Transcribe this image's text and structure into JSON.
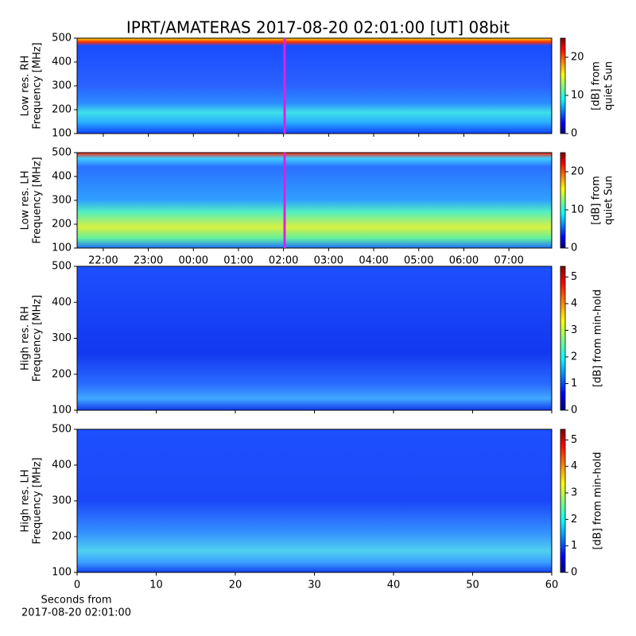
{
  "title": "IPRT/AMATERAS 2017-08-20 02:01:00 [UT]   08bit",
  "chart_data": [
    {
      "type": "heatmap",
      "ylabel": [
        "Low res. RH",
        "Frequency [MHz]"
      ],
      "xlim": [
        21.42,
        31.95
      ],
      "xticks": [
        22,
        23,
        24,
        25,
        26,
        27,
        28,
        29,
        30,
        31
      ],
      "ylim": [
        100,
        500
      ],
      "yticks": [
        100,
        200,
        300,
        400,
        500
      ],
      "colorbar": {
        "label": [
          "[dB] from",
          "quiet Sun"
        ],
        "lim": [
          0,
          25
        ],
        "ticks": [
          0,
          10,
          20
        ]
      }
    },
    {
      "type": "heatmap",
      "ylabel": [
        "Low res. LH",
        "Frequency [MHz]"
      ],
      "xlim": [
        21.42,
        31.95
      ],
      "xticks": [
        {
          "value": 22,
          "label": "22:00"
        },
        {
          "value": 23,
          "label": "23:00"
        },
        {
          "value": 24,
          "label": "00:00"
        },
        {
          "value": 25,
          "label": "01:00"
        },
        {
          "value": 26,
          "label": "02:00"
        },
        {
          "value": 27,
          "label": "03:00"
        },
        {
          "value": 28,
          "label": "04:00"
        },
        {
          "value": 29,
          "label": "05:00"
        },
        {
          "value": 30,
          "label": "06:00"
        },
        {
          "value": 31,
          "label": "07:00"
        }
      ],
      "ylim": [
        100,
        500
      ],
      "yticks": [
        100,
        200,
        300,
        400,
        500
      ],
      "colorbar": {
        "label": [
          "[dB] from",
          "quiet Sun"
        ],
        "lim": [
          0,
          25
        ],
        "ticks": [
          0,
          10,
          20
        ]
      }
    },
    {
      "type": "heatmap",
      "ylabel": [
        "High res. RH",
        "Frequency [MHz]"
      ],
      "xlim": [
        0,
        60
      ],
      "xticks": [
        0,
        10,
        20,
        30,
        40,
        50,
        60
      ],
      "ylim": [
        100,
        500
      ],
      "yticks": [
        100,
        200,
        300,
        400,
        500
      ],
      "colorbar": {
        "label": [
          "[dB] from min-hold"
        ],
        "lim": [
          0,
          5.4
        ],
        "ticks": [
          0,
          1,
          2,
          3,
          4,
          5
        ]
      }
    },
    {
      "type": "heatmap",
      "ylabel": [
        "High res. LH",
        "Frequency [MHz]"
      ],
      "xlabel": [
        "Seconds from",
        "2017-08-20 02:01:00"
      ],
      "xlim": [
        0,
        60
      ],
      "xticks": [
        0,
        10,
        20,
        30,
        40,
        50,
        60
      ],
      "ylim": [
        100,
        500
      ],
      "yticks": [
        100,
        200,
        300,
        400,
        500
      ],
      "colorbar": {
        "label": [
          "[dB] from min-hold"
        ],
        "lim": [
          0,
          5.4
        ],
        "ticks": [
          0,
          1,
          2,
          3,
          4,
          5
        ]
      }
    }
  ]
}
